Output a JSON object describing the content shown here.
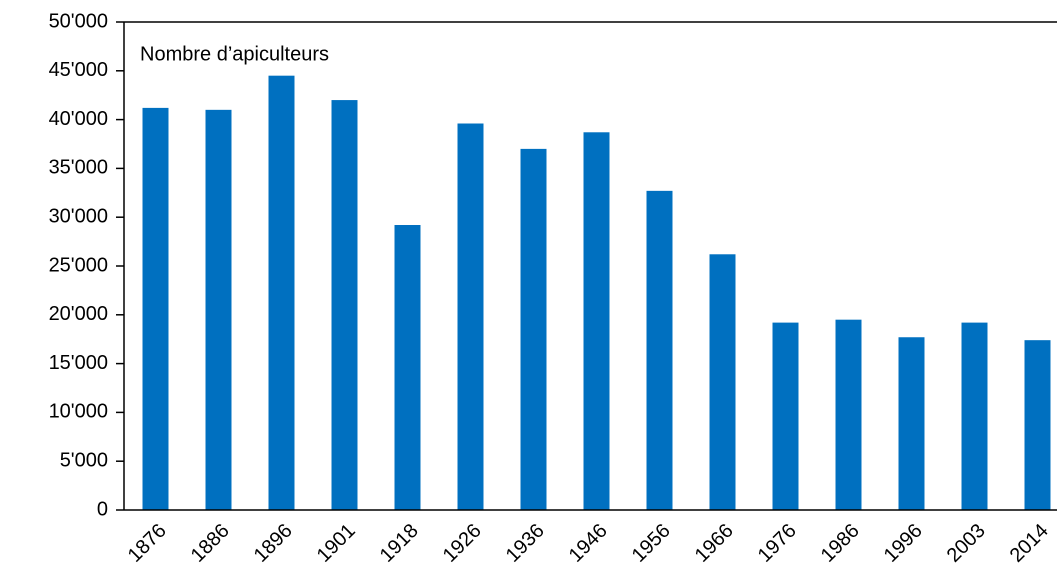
{
  "chart_data": {
    "type": "bar",
    "title": "Nombre d’apiculteurs",
    "categories": [
      "1876",
      "1886",
      "1896",
      "1901",
      "1918",
      "1926",
      "1936",
      "1946",
      "1956",
      "1966",
      "1976",
      "1986",
      "1996",
      "2003",
      "2014"
    ],
    "values": [
      41200,
      41000,
      44500,
      42000,
      29200,
      39600,
      37000,
      38700,
      32700,
      26200,
      19200,
      19500,
      17700,
      19200,
      17400
    ],
    "color": "#0070c0",
    "ylim": [
      0,
      50000
    ],
    "yticks": [
      0,
      {
        "value": 5000,
        "label": "5'000"
      },
      {
        "value": 10000,
        "label": "10'000"
      },
      {
        "value": 15000,
        "label": "15'000"
      },
      {
        "value": 20000,
        "label": "20'000"
      },
      {
        "value": 25000,
        "label": "25'000"
      },
      {
        "value": 30000,
        "label": "30'000"
      },
      {
        "value": 35000,
        "label": "35'000"
      },
      {
        "value": 40000,
        "label": "40'000"
      },
      {
        "value": 45000,
        "label": "45'000"
      },
      {
        "value": 50000,
        "label": "50'000"
      }
    ],
    "grid": false
  }
}
